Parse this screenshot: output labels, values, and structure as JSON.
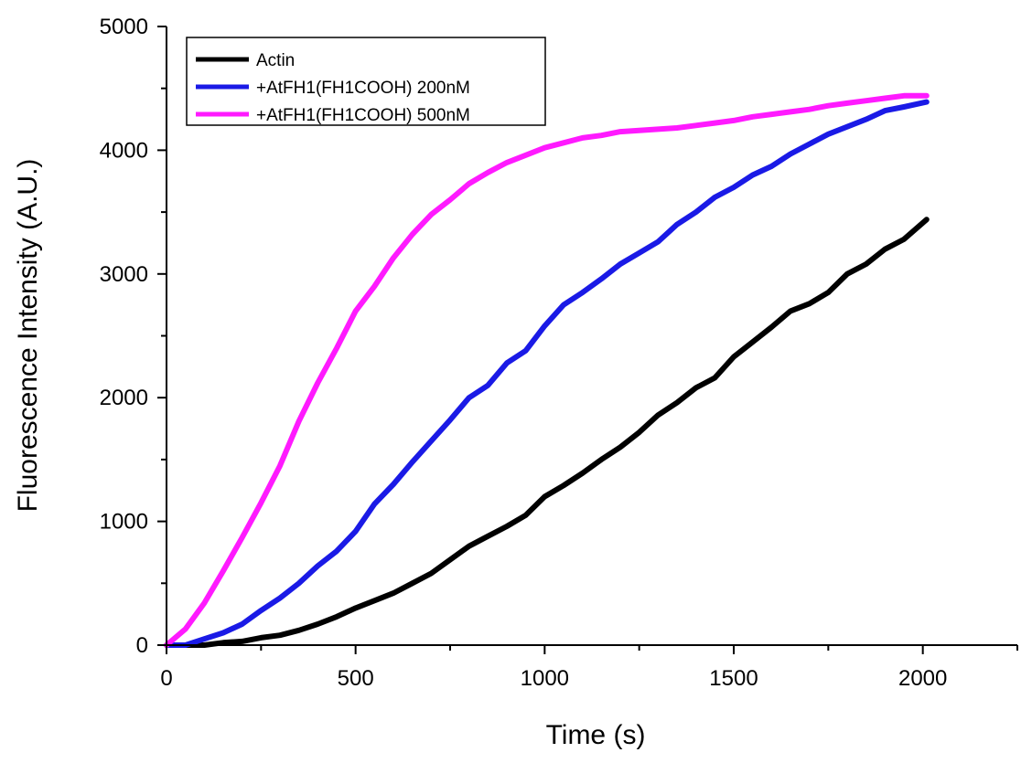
{
  "chart_data": {
    "type": "line",
    "xlabel": "Time (s)",
    "ylabel": "Fluorescence Intensity (A.U.)",
    "xlim": [
      0,
      2250
    ],
    "ylim": [
      0,
      5000
    ],
    "xticks": [
      0,
      500,
      1000,
      1500,
      2000
    ],
    "yticks": [
      0,
      1000,
      2000,
      3000,
      4000,
      5000
    ],
    "legend_position": "top-left",
    "grid": false,
    "series": [
      {
        "name": "Actin",
        "color": "#000000",
        "x": [
          0,
          50,
          100,
          150,
          200,
          250,
          300,
          350,
          400,
          450,
          500,
          550,
          600,
          650,
          700,
          750,
          800,
          850,
          900,
          950,
          1000,
          1050,
          1100,
          1150,
          1200,
          1250,
          1300,
          1350,
          1400,
          1450,
          1500,
          1550,
          1600,
          1650,
          1700,
          1750,
          1800,
          1850,
          1900,
          1950,
          2010
        ],
        "y": [
          0,
          0,
          0,
          20,
          30,
          60,
          80,
          120,
          170,
          230,
          300,
          360,
          420,
          500,
          580,
          690,
          800,
          880,
          960,
          1050,
          1200,
          1290,
          1390,
          1500,
          1600,
          1720,
          1860,
          1960,
          2080,
          2160,
          2330,
          2450,
          2570,
          2700,
          2760,
          2850,
          3000,
          3080,
          3200,
          3280,
          3440
        ]
      },
      {
        "name": "+AtFH1(FH1COOH) 200nM",
        "color": "#1a1ae6",
        "x": [
          0,
          50,
          100,
          150,
          200,
          250,
          300,
          350,
          400,
          450,
          500,
          550,
          600,
          650,
          700,
          750,
          800,
          850,
          900,
          950,
          1000,
          1050,
          1100,
          1150,
          1200,
          1250,
          1300,
          1350,
          1400,
          1450,
          1500,
          1550,
          1600,
          1650,
          1700,
          1750,
          1800,
          1850,
          1900,
          1950,
          2010
        ],
        "y": [
          0,
          0,
          50,
          100,
          170,
          280,
          380,
          500,
          640,
          760,
          920,
          1140,
          1300,
          1480,
          1650,
          1820,
          2000,
          2100,
          2280,
          2380,
          2580,
          2750,
          2850,
          2960,
          3080,
          3170,
          3260,
          3400,
          3500,
          3620,
          3700,
          3800,
          3870,
          3970,
          4050,
          4130,
          4190,
          4250,
          4320,
          4350,
          4390
        ]
      },
      {
        "name": "+AtFH1(FH1COOH) 500nM",
        "color": "#ff1aff",
        "x": [
          0,
          50,
          100,
          150,
          200,
          250,
          300,
          350,
          400,
          450,
          500,
          550,
          600,
          650,
          700,
          750,
          800,
          850,
          900,
          950,
          1000,
          1050,
          1100,
          1150,
          1200,
          1250,
          1300,
          1350,
          1400,
          1450,
          1500,
          1550,
          1600,
          1650,
          1700,
          1750,
          1800,
          1850,
          1900,
          1950,
          2010
        ],
        "y": [
          0,
          130,
          340,
          600,
          870,
          1150,
          1450,
          1810,
          2120,
          2400,
          2700,
          2900,
          3130,
          3320,
          3480,
          3600,
          3730,
          3820,
          3900,
          3960,
          4020,
          4060,
          4100,
          4120,
          4150,
          4160,
          4170,
          4180,
          4200,
          4220,
          4240,
          4270,
          4290,
          4310,
          4330,
          4360,
          4380,
          4400,
          4420,
          4440,
          4440
        ]
      }
    ]
  }
}
